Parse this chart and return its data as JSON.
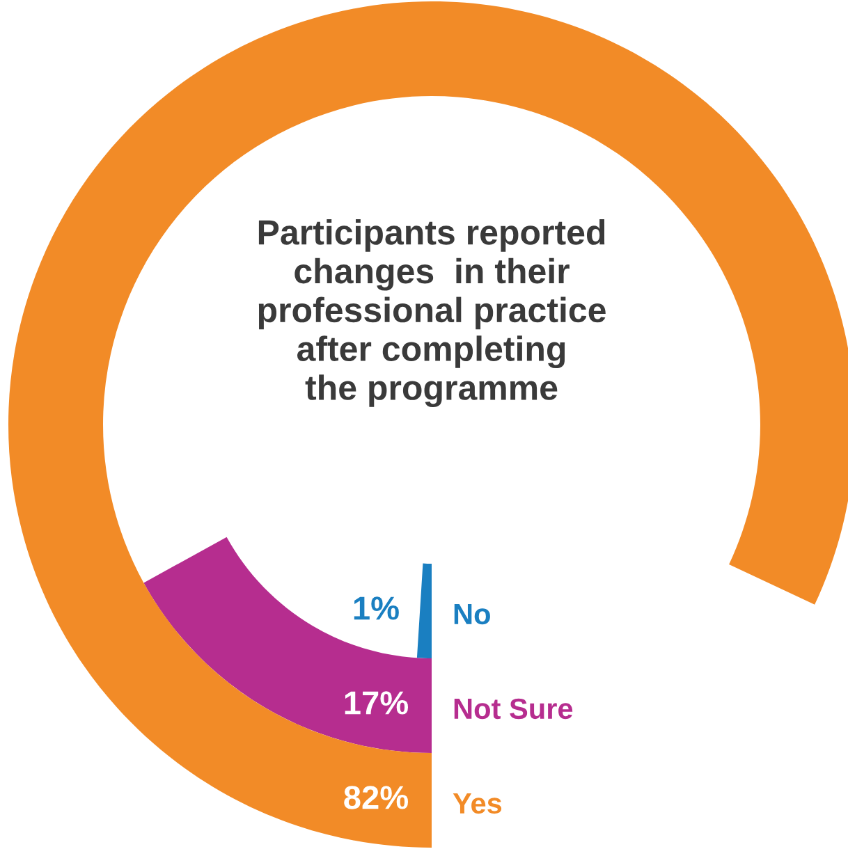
{
  "chart_data": {
    "type": "other",
    "title": "Participants reported\nchanges  in their\nprofessional practice\nafter completing\nthe programme",
    "categories": [
      "No",
      "Not Sure",
      "Yes"
    ],
    "values": [
      1,
      17,
      82
    ],
    "colors": [
      "#1a7fc1",
      "#b62d8f",
      "#f28b27"
    ],
    "value_labels": [
      "1%",
      "17%",
      "82%"
    ]
  }
}
